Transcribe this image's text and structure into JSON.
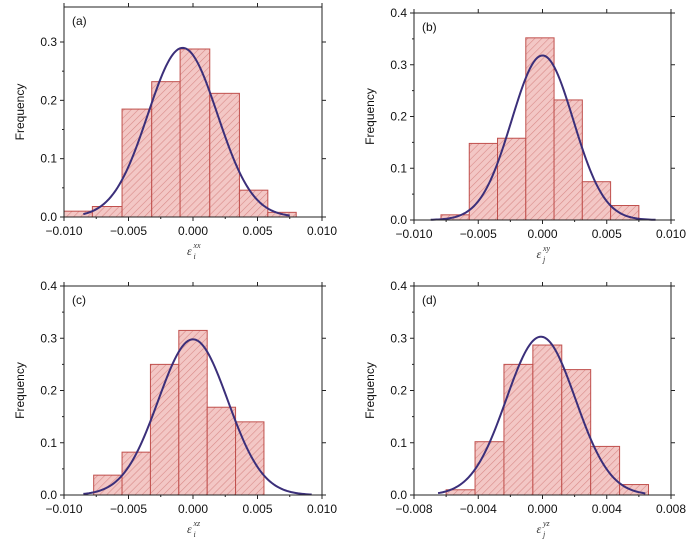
{
  "colors": {
    "bar_fill": "#f3c7c5",
    "bar_stroke": "#c0504d",
    "hatch": "#d98a88",
    "curve": "#3b2f7a",
    "frame": "#222222"
  },
  "chart_data": [
    {
      "type": "bar",
      "panel_label": "(a)",
      "ylabel": "Frequency",
      "xlabel": {
        "base": "ε",
        "sup": "xx",
        "sub": "i"
      },
      "xlim": [
        -0.01,
        0.01
      ],
      "ylim": [
        0,
        0.36
      ],
      "xticks": [
        -0.01,
        -0.005,
        0,
        0.005,
        0.01
      ],
      "xtick_labels": [
        "−0.010",
        "−0.005",
        "0.000",
        "0.005",
        "0.010"
      ],
      "yticks": [
        0,
        0.1,
        0.2,
        0.3
      ],
      "ytick_labels": [
        "0.0",
        "0.1",
        "0.2",
        "0.3"
      ],
      "bins": [
        {
          "x0": -0.01,
          "x1": -0.0078,
          "value": 0.01
        },
        {
          "x0": -0.0078,
          "x1": -0.0055,
          "value": 0.018
        },
        {
          "x0": -0.0055,
          "x1": -0.0032,
          "value": 0.185
        },
        {
          "x0": -0.0032,
          "x1": -0.001,
          "value": 0.232
        },
        {
          "x0": -0.001,
          "x1": 0.0013,
          "value": 0.288
        },
        {
          "x0": 0.0013,
          "x1": 0.0036,
          "value": 0.212
        },
        {
          "x0": 0.0036,
          "x1": 0.0058,
          "value": 0.046
        },
        {
          "x0": 0.0058,
          "x1": 0.008,
          "value": 0.008
        }
      ],
      "fit": {
        "mean": -0.0008,
        "sd": 0.0027,
        "peak": 0.29,
        "x_from": -0.0085,
        "x_to": 0.0075
      }
    },
    {
      "type": "bar",
      "panel_label": "(b)",
      "ylabel": "Frequency",
      "xlabel": {
        "base": "ε",
        "sup": "xy",
        "sub": "j"
      },
      "xlim": [
        -0.01,
        0.01
      ],
      "ylim": [
        0,
        0.4
      ],
      "xticks": [
        -0.01,
        -0.005,
        0,
        0.005,
        0.01
      ],
      "xtick_labels": [
        "−0.010",
        "−0.005",
        "0.000",
        "0.005",
        "0.010"
      ],
      "yticks": [
        0,
        0.1,
        0.2,
        0.3,
        0.4
      ],
      "ytick_labels": [
        "0.0",
        "0.1",
        "0.2",
        "0.3",
        "0.4"
      ],
      "bins": [
        {
          "x0": -0.0079,
          "x1": -0.0057,
          "value": 0.01
        },
        {
          "x0": -0.0057,
          "x1": -0.0035,
          "value": 0.148
        },
        {
          "x0": -0.0035,
          "x1": -0.0013,
          "value": 0.158
        },
        {
          "x0": -0.0013,
          "x1": 0.0009,
          "value": 0.352
        },
        {
          "x0": 0.0009,
          "x1": 0.0031,
          "value": 0.232
        },
        {
          "x0": 0.0031,
          "x1": 0.0053,
          "value": 0.074
        },
        {
          "x0": 0.0053,
          "x1": 0.0075,
          "value": 0.028
        }
      ],
      "fit": {
        "mean": 0.0,
        "sd": 0.0024,
        "peak": 0.318,
        "x_from": -0.0087,
        "x_to": 0.0088
      }
    },
    {
      "type": "bar",
      "panel_label": "(c)",
      "ylabel": "Frequency",
      "xlabel": {
        "base": "ε",
        "sup": "xz",
        "sub": "i"
      },
      "xlim": [
        -0.01,
        0.01
      ],
      "ylim": [
        0,
        0.4
      ],
      "xticks": [
        -0.01,
        -0.005,
        0,
        0.005,
        0.01
      ],
      "xtick_labels": [
        "−0.010",
        "−0.005",
        "0.000",
        "0.005",
        "0.010"
      ],
      "yticks": [
        0,
        0.1,
        0.2,
        0.3,
        0.4
      ],
      "ytick_labels": [
        "0.0",
        "0.1",
        "0.2",
        "0.3",
        "0.4"
      ],
      "bins": [
        {
          "x0": -0.0077,
          "x1": -0.0055,
          "value": 0.038
        },
        {
          "x0": -0.0055,
          "x1": -0.0033,
          "value": 0.082
        },
        {
          "x0": -0.0033,
          "x1": -0.0011,
          "value": 0.25
        },
        {
          "x0": -0.0011,
          "x1": 0.0011,
          "value": 0.315
        },
        {
          "x0": 0.0011,
          "x1": 0.0033,
          "value": 0.168
        },
        {
          "x0": 0.0033,
          "x1": 0.0055,
          "value": 0.14
        }
      ],
      "fit": {
        "mean": 0.0,
        "sd": 0.0027,
        "peak": 0.298,
        "x_from": -0.0085,
        "x_to": 0.0092
      }
    },
    {
      "type": "bar",
      "panel_label": "(d)",
      "ylabel": "Frequency",
      "xlabel": {
        "base": "ε",
        "sup": "yz",
        "sub": "j"
      },
      "xlim": [
        -0.008,
        0.008
      ],
      "ylim": [
        0,
        0.4
      ],
      "xticks": [
        -0.008,
        -0.004,
        0,
        0.004,
        0.008
      ],
      "xtick_labels": [
        "−0.008",
        "−0.004",
        "0.000",
        "0.004",
        "0.008"
      ],
      "yticks": [
        0,
        0.1,
        0.2,
        0.3,
        0.4
      ],
      "ytick_labels": [
        "0.0",
        "0.1",
        "0.2",
        "0.3",
        "0.4"
      ],
      "bins": [
        {
          "x0": -0.006,
          "x1": -0.0042,
          "value": 0.01
        },
        {
          "x0": -0.0042,
          "x1": -0.0024,
          "value": 0.102
        },
        {
          "x0": -0.0024,
          "x1": -0.0006,
          "value": 0.25
        },
        {
          "x0": -0.0006,
          "x1": 0.0012,
          "value": 0.287
        },
        {
          "x0": 0.0012,
          "x1": 0.003,
          "value": 0.24
        },
        {
          "x0": 0.003,
          "x1": 0.0048,
          "value": 0.093
        },
        {
          "x0": 0.0048,
          "x1": 0.0066,
          "value": 0.02
        }
      ],
      "fit": {
        "mean": -0.0001,
        "sd": 0.00215,
        "peak": 0.303,
        "x_from": -0.0065,
        "x_to": 0.0064
      }
    }
  ]
}
